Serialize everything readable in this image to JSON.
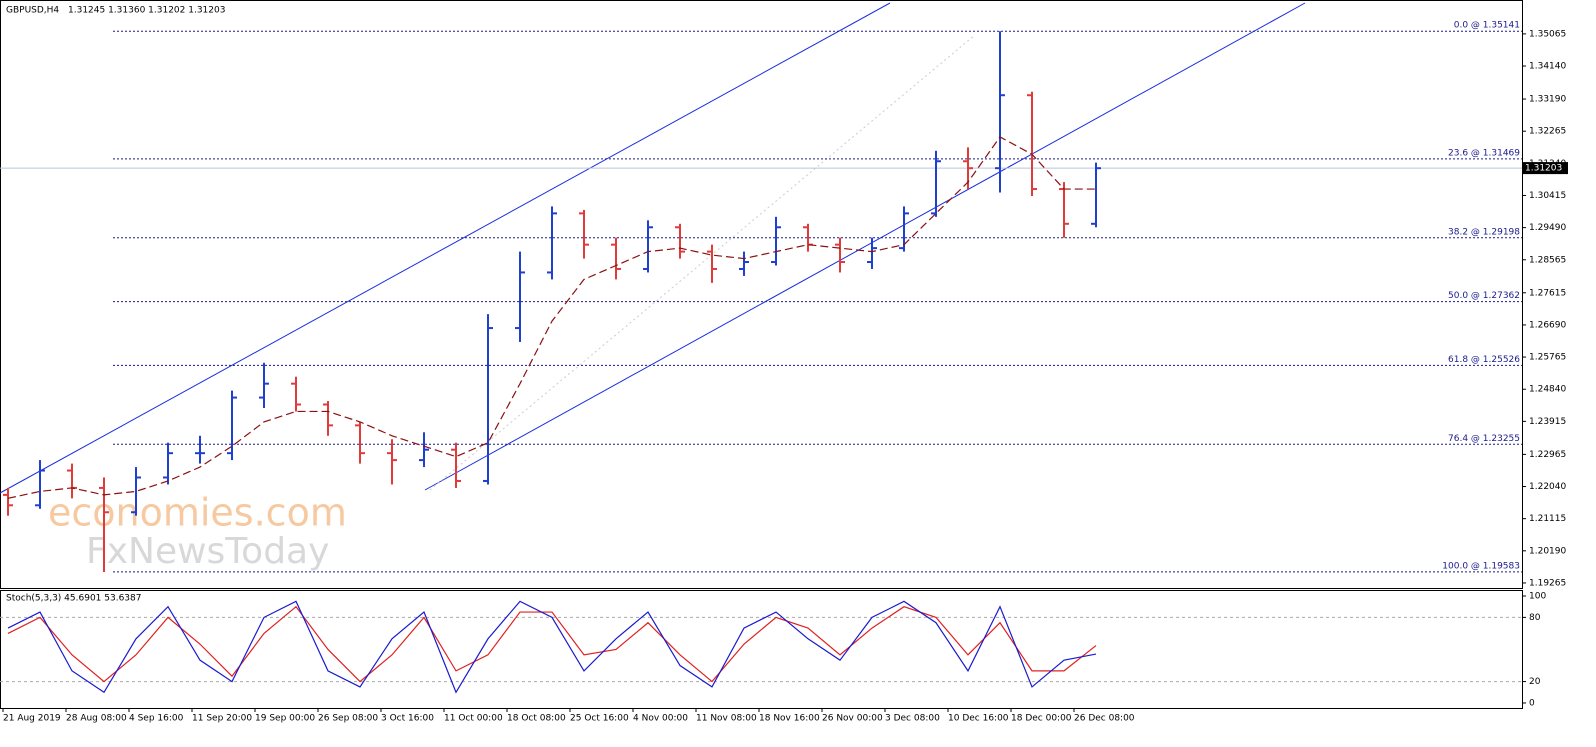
{
  "chart_data": {
    "type": "ohlc",
    "symbol": "GBPUSD,H4",
    "quote": "1.31245 1.31360 1.31202 1.31203",
    "ylim": [
      1.1912,
      1.3604
    ],
    "yticks": [
      1.35065,
      {
        "value": 1.3414,
        "label": "1.34140"
      },
      {
        "value": 1.3319,
        "label": "1.33190"
      },
      1.32265,
      {
        "value": 1.3134,
        "label": "1.31340"
      },
      1.30415,
      {
        "value": 1.2949,
        "label": "1.29490"
      },
      1.28565,
      1.27615,
      {
        "value": 1.2669,
        "label": "1.26690"
      },
      1.25765,
      {
        "value": 1.2484,
        "label": "1.24840"
      },
      1.23915,
      1.22965,
      {
        "value": 1.2204,
        "label": "1.22040"
      },
      1.21115,
      {
        "value": 1.2019,
        "label": "1.20190"
      },
      1.19265
    ],
    "up_color": "#1f3fd0",
    "down_color": "#e03a3a",
    "ma_color": "#8b1010",
    "open": [
      1.218,
      1.215,
      1.225,
      1.22,
      1.213,
      1.223,
      1.23,
      1.23,
      1.246,
      1.25,
      1.244,
      1.238,
      1.23,
      1.228,
      1.231,
      1.222,
      1.266,
      1.282,
      1.299,
      1.29,
      1.283,
      1.295,
      1.288,
      1.283,
      1.285,
      1.295,
      1.29,
      1.285,
      1.289,
      1.299,
      1.314,
      1.312,
      1.333,
      1.306,
      1.296
    ],
    "high": [
      1.22,
      1.228,
      1.227,
      1.223,
      1.226,
      1.233,
      1.235,
      1.248,
      1.256,
      1.252,
      1.245,
      1.239,
      1.234,
      1.236,
      1.233,
      1.27,
      1.288,
      1.301,
      1.3,
      1.292,
      1.297,
      1.296,
      1.29,
      1.288,
      1.298,
      1.296,
      1.292,
      1.292,
      1.301,
      1.317,
      1.318,
      1.3514,
      1.334,
      1.308,
      1.3136
    ],
    "low": [
      1.212,
      1.214,
      1.217,
      1.1958,
      1.212,
      1.221,
      1.227,
      1.228,
      1.243,
      1.242,
      1.235,
      1.227,
      1.221,
      1.226,
      1.22,
      1.221,
      1.262,
      1.28,
      1.286,
      1.28,
      1.282,
      1.286,
      1.279,
      1.281,
      1.284,
      1.288,
      1.282,
      1.283,
      1.288,
      1.298,
      1.306,
      1.305,
      1.304,
      1.292,
      1.295
    ],
    "close": [
      1.215,
      1.225,
      1.22,
      1.213,
      1.223,
      1.23,
      1.23,
      1.246,
      1.25,
      1.244,
      1.238,
      1.23,
      1.228,
      1.231,
      1.222,
      1.266,
      1.282,
      1.299,
      1.29,
      1.283,
      1.295,
      1.288,
      1.283,
      1.285,
      1.295,
      1.29,
      1.285,
      1.289,
      1.299,
      1.314,
      1.312,
      1.333,
      1.306,
      1.296,
      1.312
    ],
    "ma": [
      1.217,
      1.219,
      1.22,
      1.218,
      1.219,
      1.222,
      1.226,
      1.232,
      1.239,
      1.242,
      1.242,
      1.239,
      1.235,
      1.232,
      1.229,
      1.233,
      1.25,
      1.268,
      1.28,
      1.284,
      1.288,
      1.289,
      1.287,
      1.286,
      1.288,
      1.29,
      1.289,
      1.288,
      1.29,
      1.299,
      1.308,
      1.321,
      1.316,
      1.306,
      1.306
    ],
    "fib_levels": [
      {
        "label": "0.0 @ 1.35141",
        "value": 1.35141
      },
      {
        "label": "23.6 @ 1.31469",
        "value": 1.31469
      },
      {
        "label": "38.2 @ 1.29198",
        "value": 1.29198
      },
      {
        "label": "50.0 @ 1.27362",
        "value": 1.27362
      },
      {
        "label": "61.8 @ 1.25526",
        "value": 1.25526
      },
      {
        "label": "76.4 @ 1.23255",
        "value": 1.23255
      },
      {
        "label": "100.0 @ 1.19583",
        "value": 1.19583
      }
    ],
    "last_price": {
      "value": 1.31203,
      "label": "1.31203"
    },
    "watermark": [
      "economies.com",
      "FxNewsToday"
    ],
    "stoch": {
      "title": "Stoch(5,3,3) 45.6901 53.6387",
      "ylim": [
        -4.7,
        105.6
      ],
      "yticks": [
        0,
        20,
        80,
        100
      ],
      "levels": [
        80,
        20
      ],
      "main": [
        70,
        85,
        30,
        10,
        60,
        90,
        40,
        20,
        80,
        95,
        30,
        15,
        60,
        85,
        10,
        60,
        95,
        80,
        30,
        60,
        85,
        35,
        15,
        70,
        85,
        60,
        40,
        80,
        95,
        75,
        30,
        90,
        15,
        40,
        45.69
      ],
      "signal": [
        65,
        80,
        45,
        20,
        45,
        80,
        55,
        25,
        65,
        90,
        50,
        20,
        45,
        80,
        30,
        45,
        85,
        85,
        45,
        50,
        75,
        45,
        20,
        55,
        80,
        70,
        45,
        70,
        90,
        80,
        45,
        75,
        30,
        30,
        53.64
      ],
      "main_color": "#1a1ad0",
      "signal_color": "#e02020"
    },
    "x_labels": [
      "21 Aug 2019",
      "28 Aug 08:00",
      "4 Sep 16:00",
      "11 Sep 20:00",
      "19 Sep 00:00",
      "26 Sep 08:00",
      "3 Oct 16:00",
      "11 Oct 00:00",
      "18 Oct 08:00",
      "25 Oct 16:00",
      "4 Nov 00:00",
      "11 Nov 08:00",
      "18 Nov 16:00",
      "26 Nov 00:00",
      "3 Dec 08:00",
      "10 Dec 16:00",
      "18 Dec 00:00",
      "26 Dec 08:00"
    ]
  }
}
